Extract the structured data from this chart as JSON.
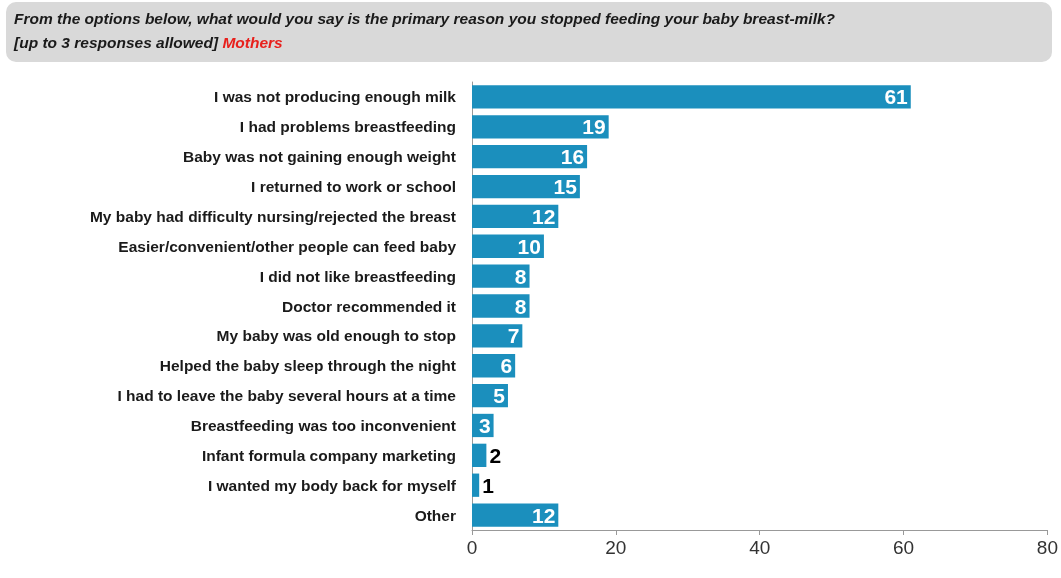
{
  "chart_data": {
    "type": "bar",
    "orientation": "horizontal",
    "title": "From the options below, what would you say is the primary reason you stopped feeding your baby breast-milk?",
    "subtitle": "[up to 3 responses allowed]",
    "annotations": [
      "Mothers"
    ],
    "categories": [
      "I was not producing enough milk",
      "I had problems breastfeeding",
      "Baby was not gaining enough weight",
      "I returned to work or school",
      "My baby had difficulty nursing/rejected the breast",
      "Easier/convenient/other people can feed baby",
      "I did not like breastfeeding",
      "Doctor recommended it",
      "My baby was old enough to stop",
      "Helped the baby sleep through the night",
      "I had to leave the baby several hours at a time",
      "Breastfeeding was too inconvenient",
      "Infant formula company marketing",
      "I wanted my body back for myself",
      "Other"
    ],
    "values": [
      61,
      19,
      16,
      15,
      12,
      10,
      8,
      8,
      7,
      6,
      5,
      3,
      2,
      1,
      12
    ],
    "color": "#1b8fbd",
    "xlim": [
      0,
      80
    ],
    "xticks": [
      0,
      20,
      40,
      60,
      80
    ],
    "grid": false,
    "data_labels": true
  }
}
